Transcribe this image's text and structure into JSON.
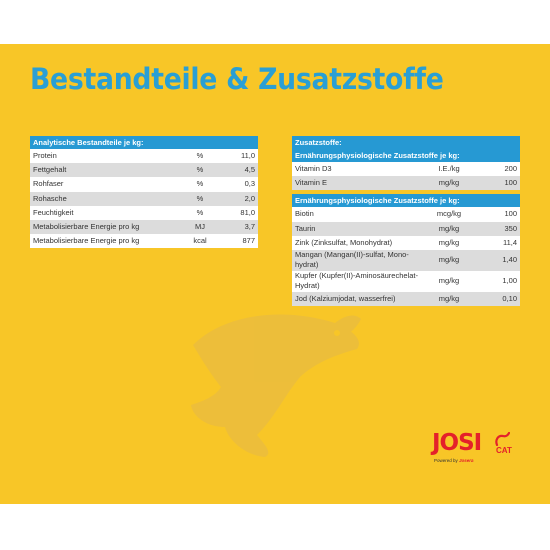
{
  "title": "Bestandteile & Zusatzstoffe",
  "analytical": {
    "header": "Analytische Bestandteile je kg:",
    "rows": [
      {
        "name": "Protein",
        "unit": "%",
        "value": "11,0"
      },
      {
        "name": "Fettgehalt",
        "unit": "%",
        "value": "4,5"
      },
      {
        "name": "Rohfaser",
        "unit": "%",
        "value": "0,3"
      },
      {
        "name": "Rohasche",
        "unit": "%",
        "value": "2,0"
      },
      {
        "name": "Feuchtigkeit",
        "unit": "%",
        "value": "81,0"
      },
      {
        "name": "Metabolisierbare Energie pro kg",
        "unit": "MJ",
        "value": "3,7"
      },
      {
        "name": "Metabolisierbare Energie pro kg",
        "unit": "kcal",
        "value": "877"
      }
    ]
  },
  "additives": {
    "header": "Zusatzstoffe:",
    "vitamins": {
      "header": "Ernährungsphysiologische Zusatzstoffe je kg:",
      "rows": [
        {
          "name": "Vitamin D3",
          "unit": "I.E./kg",
          "value": "200"
        },
        {
          "name": "Vitamin E",
          "unit": "mg/kg",
          "value": "100"
        }
      ]
    },
    "minerals": {
      "header": "Ernährungsphysiologische Zusatzstoffe je kg:",
      "rows": [
        {
          "name": "Biotin",
          "unit": "mcg/kg",
          "value": "100"
        },
        {
          "name": "Taurin",
          "unit": "mg/kg",
          "value": "350"
        },
        {
          "name": "Zink (Zinksulfat, Monohydrat)",
          "unit": "mg/kg",
          "value": "11,4"
        },
        {
          "name": "Mangan (Mangan(II)-sulfat, Mono-hydrat)",
          "unit": "mg/kg",
          "value": "1,40"
        },
        {
          "name": "Kupfer (Kupfer(II)-Aminosäurechelat-Hydrat)",
          "unit": "mg/kg",
          "value": "1,00"
        },
        {
          "name": "Jod (Kalziumjodat, wasserfrei)",
          "unit": "mg/kg",
          "value": "0,10"
        }
      ]
    }
  },
  "logo": {
    "brand": "JOSI",
    "sub_brand": "CAT",
    "powered_prefix": "Powered by",
    "powered_brand": "Josera"
  },
  "colors": {
    "background": "#f8c627",
    "accent_blue": "#2699d3",
    "title_blue": "#2a9fd4",
    "logo_red": "#e4212a",
    "row_grey": "#dcdcdc"
  },
  "icons": {
    "watermark": "fish-silhouette-icon",
    "logo_tail": "cat-tail-icon"
  }
}
